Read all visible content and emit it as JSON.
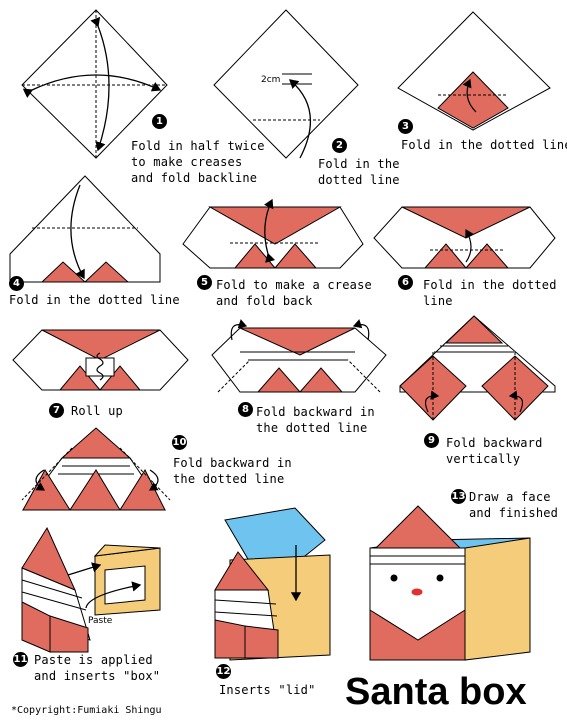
{
  "title": "Santa box",
  "copyright": "*Copyright:Fumiaki Shingu",
  "measure_label": "2cm",
  "paste_label": "Paste",
  "colors": {
    "red": "#e06c60",
    "blue": "#6ec4ee",
    "yellow": "#f5cc7a",
    "line": "#000000"
  },
  "steps": [
    {
      "num": "1",
      "text": "Fold in half twice\nto make creases\nand fold backline"
    },
    {
      "num": "2",
      "text": "Fold in the\ndotted line"
    },
    {
      "num": "3",
      "text": "Fold in the dotted line"
    },
    {
      "num": "4",
      "text": "Fold in the dotted line"
    },
    {
      "num": "5",
      "text": "Fold to make a crease\nand fold back"
    },
    {
      "num": "6",
      "text": "Fold in the dotted\nline"
    },
    {
      "num": "7",
      "text": "Roll up"
    },
    {
      "num": "8",
      "text": "Fold backward in\nthe dotted line"
    },
    {
      "num": "9",
      "text": "Fold backward\nvertically"
    },
    {
      "num": "10",
      "text": "Fold backward in\nthe dotted line"
    },
    {
      "num": "11",
      "text": "Paste is applied\nand inserts \"box\""
    },
    {
      "num": "12",
      "text": "Inserts \"lid\""
    },
    {
      "num": "13",
      "text": "Draw a face\nand finished"
    }
  ]
}
